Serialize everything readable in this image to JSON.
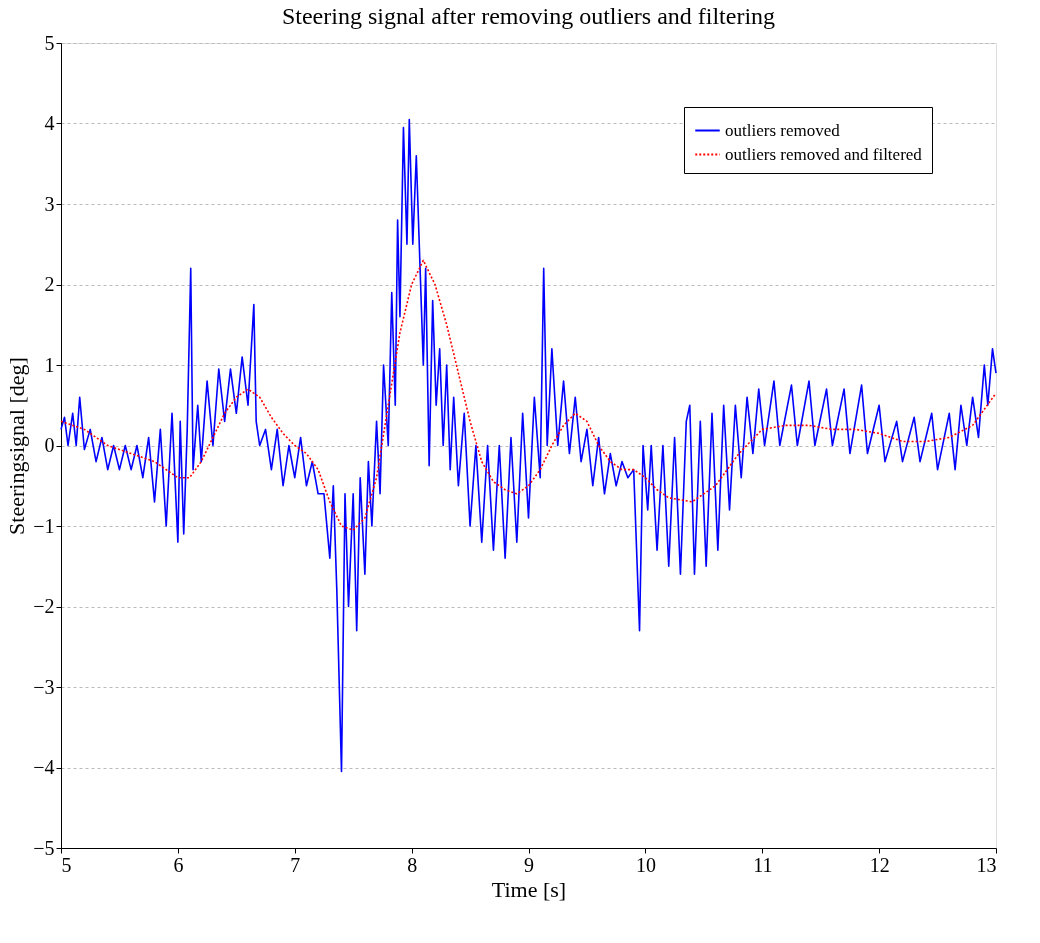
{
  "chart_data": {
    "type": "line",
    "title": "Steering signal after removing outliers and filtering",
    "xlabel": "Time [s]",
    "ylabel": "Steeringsignal [deg]",
    "xlim": [
      5,
      13
    ],
    "xticks": [
      5,
      6,
      7,
      8,
      9,
      10,
      11,
      12,
      13
    ],
    "ylim": [
      -5,
      5
    ],
    "yticks": [
      -5,
      -4,
      -3,
      -2,
      -1,
      0,
      1,
      2,
      3,
      4,
      5
    ],
    "grid": "y",
    "legend": "top right",
    "marker": "none",
    "series": [
      {
        "name": "outliers removed",
        "color": "#0000ff",
        "line_style": "solid",
        "x": [
          5.0,
          5.03,
          5.06,
          5.1,
          5.13,
          5.16,
          5.2,
          5.25,
          5.3,
          5.35,
          5.4,
          5.45,
          5.5,
          5.55,
          5.6,
          5.65,
          5.7,
          5.75,
          5.8,
          5.85,
          5.9,
          5.95,
          6.0,
          6.02,
          6.05,
          6.08,
          6.11,
          6.13,
          6.17,
          6.2,
          6.25,
          6.3,
          6.35,
          6.4,
          6.45,
          6.5,
          6.55,
          6.6,
          6.65,
          6.67,
          6.7,
          6.75,
          6.8,
          6.85,
          6.9,
          6.95,
          7.0,
          7.05,
          7.1,
          7.15,
          7.2,
          7.25,
          7.3,
          7.33,
          7.36,
          7.4,
          7.43,
          7.46,
          7.5,
          7.53,
          7.56,
          7.6,
          7.63,
          7.66,
          7.7,
          7.73,
          7.76,
          7.8,
          7.83,
          7.86,
          7.88,
          7.9,
          7.93,
          7.96,
          7.98,
          8.01,
          8.04,
          8.07,
          8.1,
          8.12,
          8.15,
          8.18,
          8.21,
          8.24,
          8.27,
          8.3,
          8.33,
          8.36,
          8.4,
          8.45,
          8.5,
          8.55,
          8.6,
          8.65,
          8.7,
          8.75,
          8.8,
          8.85,
          8.9,
          8.95,
          9.0,
          9.05,
          9.1,
          9.13,
          9.16,
          9.2,
          9.25,
          9.3,
          9.35,
          9.4,
          9.45,
          9.5,
          9.55,
          9.6,
          9.65,
          9.7,
          9.75,
          9.8,
          9.85,
          9.9,
          9.95,
          9.98,
          10.02,
          10.05,
          10.1,
          10.15,
          10.2,
          10.25,
          10.3,
          10.35,
          10.38,
          10.42,
          10.47,
          10.52,
          10.57,
          10.62,
          10.67,
          10.72,
          10.77,
          10.82,
          10.87,
          10.92,
          10.97,
          11.02,
          11.1,
          11.15,
          11.25,
          11.3,
          11.4,
          11.45,
          11.55,
          11.6,
          11.7,
          11.75,
          11.85,
          11.9,
          12.0,
          12.05,
          12.15,
          12.2,
          12.3,
          12.35,
          12.45,
          12.5,
          12.6,
          12.65,
          12.7,
          12.75,
          12.8,
          12.85,
          12.9,
          12.93,
          12.97,
          13.0
        ],
        "values": [
          0.2,
          0.35,
          0.0,
          0.4,
          0.0,
          0.6,
          -0.05,
          0.2,
          -0.2,
          0.1,
          -0.3,
          0.0,
          -0.3,
          0.0,
          -0.3,
          0.0,
          -0.4,
          0.1,
          -0.7,
          0.2,
          -1.0,
          0.4,
          -1.2,
          0.3,
          -1.1,
          0.2,
          2.2,
          -0.3,
          0.5,
          -0.2,
          0.8,
          0.0,
          0.95,
          0.3,
          0.95,
          0.4,
          1.1,
          0.5,
          1.75,
          0.3,
          0.0,
          0.2,
          -0.3,
          0.2,
          -0.5,
          0.0,
          -0.4,
          0.1,
          -0.5,
          -0.2,
          -0.6,
          -0.6,
          -1.4,
          -0.5,
          -1.8,
          -4.05,
          -0.6,
          -2.0,
          -0.6,
          -2.3,
          -0.4,
          -1.6,
          -0.2,
          -1.0,
          0.3,
          -0.6,
          1.0,
          0.0,
          1.9,
          0.5,
          2.8,
          1.6,
          3.95,
          2.5,
          4.05,
          2.5,
          3.6,
          2.3,
          1.0,
          2.2,
          -0.25,
          1.8,
          0.5,
          1.2,
          0.0,
          1.0,
          -0.3,
          0.6,
          -0.5,
          0.4,
          -1.0,
          0.0,
          -1.2,
          0.0,
          -1.3,
          0.0,
          -1.4,
          0.1,
          -1.2,
          0.4,
          -0.9,
          0.6,
          -0.4,
          2.2,
          0.0,
          1.2,
          0.0,
          0.8,
          -0.1,
          0.6,
          -0.2,
          0.2,
          -0.5,
          0.1,
          -0.6,
          -0.1,
          -0.5,
          -0.2,
          -0.4,
          -0.3,
          -2.3,
          0.0,
          -0.8,
          0.0,
          -1.3,
          0.0,
          -1.5,
          0.1,
          -1.6,
          0.3,
          0.5,
          -1.6,
          0.3,
          -1.5,
          0.4,
          -1.3,
          0.5,
          -0.8,
          0.5,
          -0.4,
          0.6,
          -0.1,
          0.7,
          0.0,
          0.8,
          0.0,
          0.75,
          0.0,
          0.8,
          0.0,
          0.7,
          0.0,
          0.7,
          -0.1,
          0.75,
          -0.1,
          0.5,
          -0.2,
          0.3,
          -0.2,
          0.35,
          -0.2,
          0.4,
          -0.3,
          0.4,
          -0.3,
          0.5,
          0.0,
          0.6,
          0.1,
          1.0,
          0.5,
          1.2,
          0.9
        ]
      },
      {
        "name": "outliers removed and filtered",
        "color": "#ff0000",
        "line_style": "dotted",
        "x": [
          5.0,
          5.2,
          5.4,
          5.6,
          5.8,
          6.0,
          6.1,
          6.2,
          6.3,
          6.4,
          6.5,
          6.6,
          6.7,
          6.8,
          6.9,
          7.0,
          7.1,
          7.2,
          7.3,
          7.4,
          7.5,
          7.6,
          7.7,
          7.8,
          7.9,
          8.0,
          8.1,
          8.2,
          8.3,
          8.4,
          8.5,
          8.6,
          8.7,
          8.8,
          8.9,
          9.0,
          9.1,
          9.2,
          9.3,
          9.4,
          9.5,
          9.6,
          9.7,
          9.8,
          9.9,
          10.0,
          10.1,
          10.2,
          10.4,
          10.6,
          10.8,
          11.0,
          11.2,
          11.4,
          11.6,
          11.8,
          12.0,
          12.2,
          12.4,
          12.6,
          12.8,
          13.0
        ],
        "values": [
          0.3,
          0.2,
          0.0,
          -0.1,
          -0.2,
          -0.4,
          -0.4,
          -0.2,
          0.1,
          0.4,
          0.6,
          0.7,
          0.6,
          0.35,
          0.15,
          0.0,
          -0.1,
          -0.3,
          -0.7,
          -1.0,
          -1.05,
          -0.9,
          -0.4,
          0.5,
          1.4,
          2.0,
          2.3,
          2.0,
          1.5,
          0.9,
          0.3,
          -0.2,
          -0.45,
          -0.55,
          -0.6,
          -0.5,
          -0.3,
          0.0,
          0.25,
          0.4,
          0.3,
          0.0,
          -0.2,
          -0.3,
          -0.3,
          -0.4,
          -0.55,
          -0.65,
          -0.7,
          -0.5,
          -0.1,
          0.2,
          0.25,
          0.25,
          0.2,
          0.2,
          0.15,
          0.05,
          0.05,
          0.1,
          0.25,
          0.65
        ]
      }
    ]
  }
}
